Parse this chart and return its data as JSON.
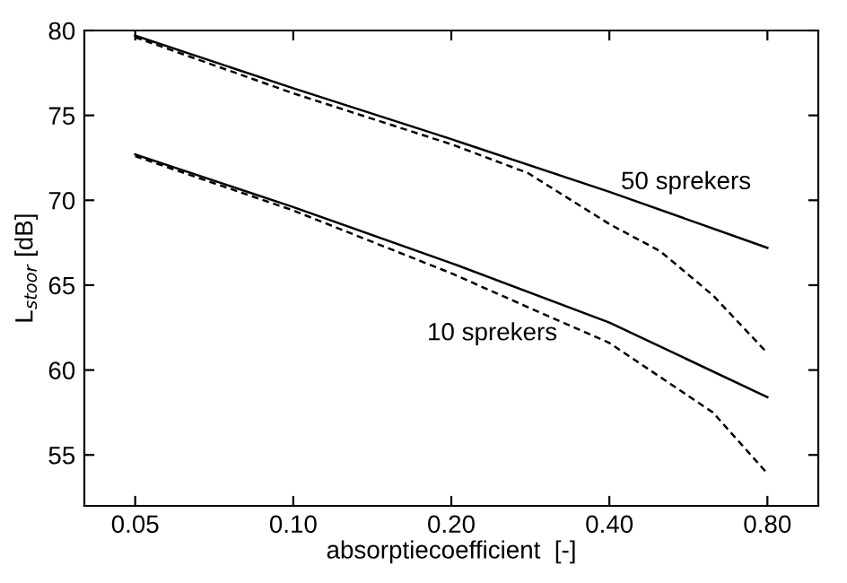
{
  "chart_data": {
    "type": "line",
    "xlabel": "absorptiecoefficient  [-]",
    "ylabel": "L$_{stoor}$ [dB]",
    "log": "x",
    "xlim": [
      0.04,
      1.0
    ],
    "xticks": [
      {
        "value": 0.05,
        "label": "0.05"
      },
      {
        "value": 0.1,
        "label": "0.10"
      },
      {
        "value": 0.2,
        "label": "0.20"
      },
      {
        "value": 0.4,
        "label": "0.40"
      },
      {
        "value": 0.8,
        "label": "0.80"
      }
    ],
    "ylim": [
      52,
      80
    ],
    "yticks": [
      55,
      60,
      65,
      70,
      75,
      80
    ],
    "grid": false,
    "marker": "none",
    "series": [
      {
        "color": "#000000",
        "line_style": "solid",
        "x": [
          0.05,
          0.1,
          0.2,
          0.4,
          0.8
        ],
        "values": [
          79.7,
          76.6,
          73.6,
          70.5,
          67.2
        ]
      },
      {
        "color": "#000000",
        "line_style": "dashed",
        "x": [
          0.05,
          0.1,
          0.2,
          0.28,
          0.4,
          0.5,
          0.63,
          0.8
        ],
        "values": [
          79.6,
          76.3,
          73.3,
          71.6,
          68.6,
          67.0,
          64.4,
          61.0
        ]
      },
      {
        "color": "#000000",
        "line_style": "solid",
        "x": [
          0.05,
          0.1,
          0.2,
          0.4,
          0.8
        ],
        "values": [
          72.7,
          69.6,
          66.3,
          62.8,
          58.4
        ]
      },
      {
        "color": "#000000",
        "line_style": "dashed",
        "x": [
          0.05,
          0.1,
          0.2,
          0.28,
          0.4,
          0.63,
          0.8
        ],
        "values": [
          72.6,
          69.4,
          65.7,
          63.7,
          61.6,
          57.5,
          53.9
        ]
      }
    ],
    "annotations": [
      "50 sprekers",
      "10 sprekers"
    ]
  }
}
